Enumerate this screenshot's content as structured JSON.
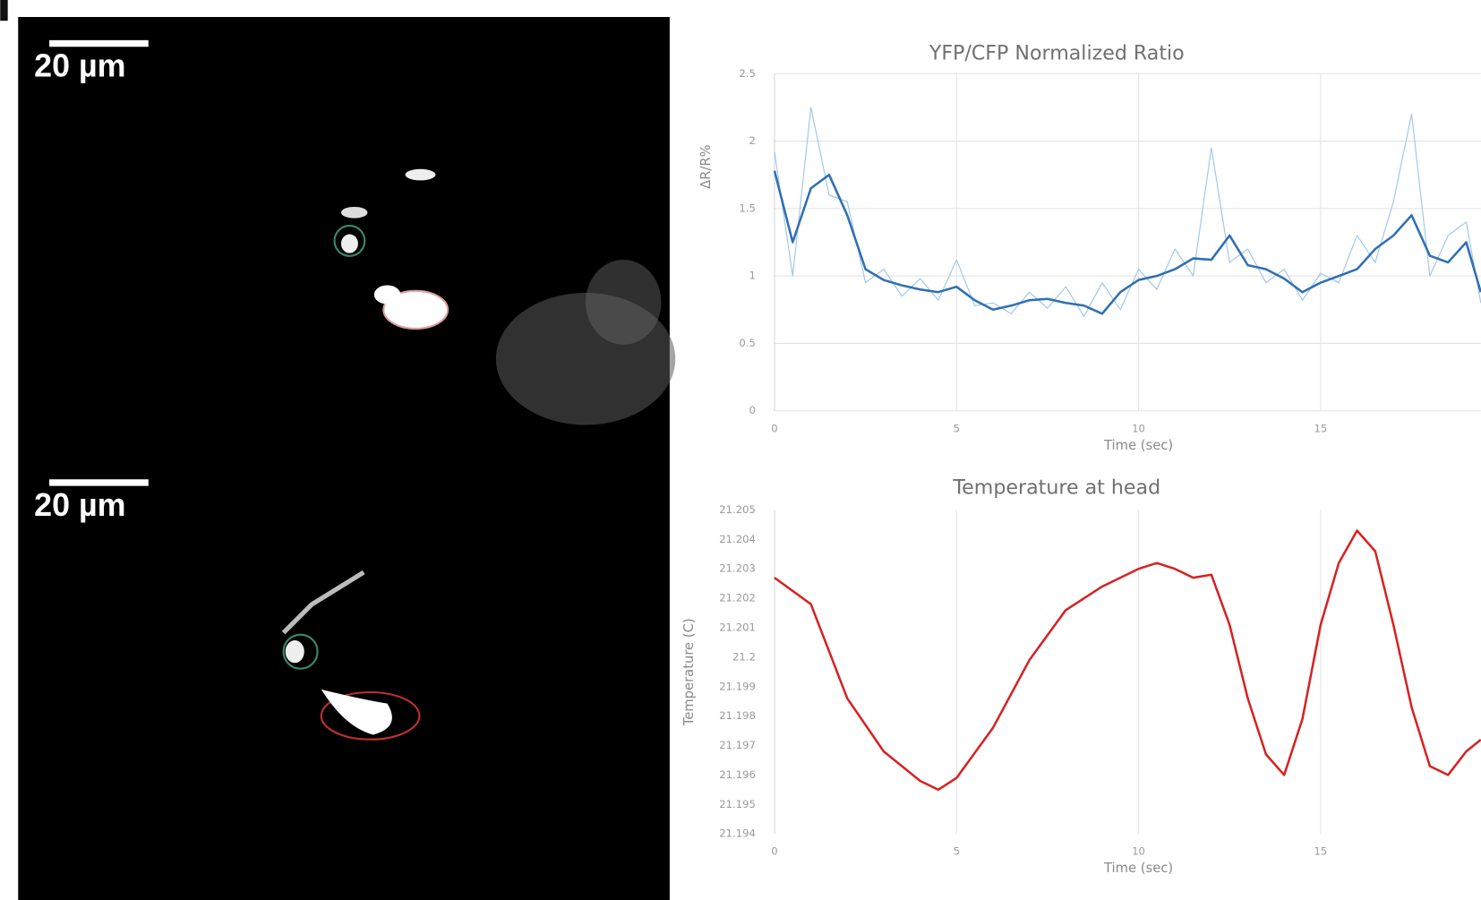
{
  "images": [
    {
      "scale_bar": "20 µm"
    },
    {
      "scale_bar": "20 µm"
    }
  ],
  "chart_data": [
    {
      "type": "line",
      "title": "YFP/CFP Normalized Ratio",
      "x_label": "Time (sec)",
      "y_label": "ΔR/R%",
      "x": [
        0,
        0.5,
        1,
        1.5,
        2,
        2.5,
        3,
        3.5,
        4,
        4.5,
        5,
        5.5,
        6,
        6.5,
        7,
        7.5,
        8,
        8.5,
        9,
        9.5,
        10,
        10.5,
        11,
        11.5,
        12,
        12.5,
        13,
        13.5,
        14,
        14.5,
        15,
        15.5,
        16,
        16.5,
        17,
        17.5,
        18,
        18.5,
        19,
        19.4
      ],
      "series": [
        {
          "color": "#9fc6ea",
          "values": [
            1.92,
            1.0,
            2.25,
            1.6,
            1.55,
            0.95,
            1.05,
            0.85,
            0.98,
            0.82,
            1.12,
            0.78,
            0.8,
            0.72,
            0.88,
            0.76,
            0.92,
            0.7,
            0.95,
            0.75,
            1.05,
            0.9,
            1.2,
            1.0,
            1.95,
            1.1,
            1.2,
            0.95,
            1.05,
            0.82,
            1.02,
            0.95,
            1.3,
            1.1,
            1.55,
            2.2,
            1.0,
            1.3,
            1.4,
            0.8
          ]
        },
        {
          "color": "#2f6fb3",
          "values": [
            1.78,
            1.25,
            1.65,
            1.75,
            1.45,
            1.05,
            0.97,
            0.93,
            0.9,
            0.88,
            0.92,
            0.82,
            0.75,
            0.78,
            0.82,
            0.83,
            0.8,
            0.78,
            0.72,
            0.88,
            0.97,
            1.0,
            1.05,
            1.13,
            1.12,
            1.3,
            1.08,
            1.05,
            0.98,
            0.88,
            0.95,
            1.0,
            1.05,
            1.2,
            1.3,
            1.45,
            1.15,
            1.1,
            1.25,
            0.88
          ]
        }
      ],
      "xlim": [
        0,
        19.4
      ],
      "xticks": [
        0,
        5,
        10,
        15
      ],
      "ylim": [
        0,
        2.5
      ],
      "yticks": [
        0,
        0.5,
        1,
        1.5,
        2,
        2.5
      ],
      "grid": "both"
    },
    {
      "type": "line",
      "title": "Temperature at head",
      "x_label": "Time (sec)",
      "y_label": "Temperature (C)",
      "x": [
        0,
        1,
        1.5,
        2,
        3,
        4,
        4.5,
        5,
        6,
        7,
        8,
        9,
        10,
        10.5,
        11,
        11.5,
        12,
        12.5,
        13,
        13.5,
        14,
        14.5,
        15,
        15.5,
        16,
        16.5,
        17,
        17.5,
        18,
        18.5,
        19,
        19.4
      ],
      "series": [
        {
          "color": "#d62222",
          "values": [
            21.2027,
            21.2018,
            21.2002,
            21.1986,
            21.1968,
            21.1958,
            21.1955,
            21.1959,
            21.1976,
            21.1999,
            21.2016,
            21.2024,
            21.203,
            21.2032,
            21.203,
            21.2027,
            21.2028,
            21.2011,
            21.1986,
            21.1967,
            21.196,
            21.1979,
            21.2011,
            21.2032,
            21.2043,
            21.2036,
            21.2011,
            21.1983,
            21.1963,
            21.196,
            21.1968,
            21.1972
          ]
        }
      ],
      "xlim": [
        0,
        19.4
      ],
      "xticks": [
        0,
        5,
        10,
        15
      ],
      "ylim": [
        21.194,
        21.205
      ],
      "yticks": [
        21.194,
        21.195,
        21.196,
        21.197,
        21.198,
        21.199,
        21.2,
        21.201,
        21.202,
        21.203,
        21.204,
        21.205
      ],
      "grid": "x"
    }
  ]
}
